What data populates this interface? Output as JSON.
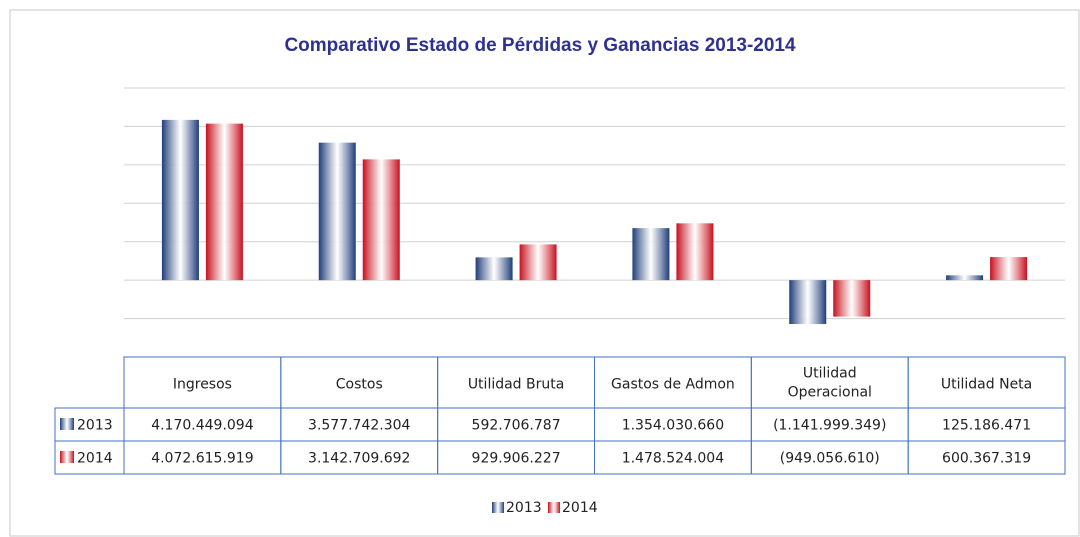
{
  "chart_data": {
    "type": "bar",
    "title": "Comparativo Estado de Pérdidas y Ganancias 2013-2014",
    "categories": [
      "Ingresos",
      "Costos",
      "Utilidad Bruta",
      "Gastos de Admon",
      "Utilidad Operacional",
      "Utilidad Neta"
    ],
    "series": [
      {
        "name": "2013",
        "color": "#1f3d7a",
        "values": [
          4170449094,
          3577742304,
          592706787,
          1354030660,
          -1141999349,
          125186471
        ],
        "value_labels": [
          "4.170.449.094",
          "3.577.742.304",
          "592.706.787",
          "1.354.030.660",
          "(1.141.999.349)",
          "125.186.471"
        ]
      },
      {
        "name": "2014",
        "color": "#c8101e",
        "values": [
          4072615919,
          3142709692,
          929906227,
          1478524004,
          -949056610,
          600367319
        ],
        "value_labels": [
          "4.072.615.919",
          "3.142.709.692",
          "929.906.227",
          "1.478.524.004",
          "(949.056.610)",
          "600.367.319"
        ]
      }
    ],
    "ylim": [
      -2000000000,
      5000000000
    ],
    "yticks": [
      -1000000000,
      0,
      1000000000,
      2000000000,
      3000000000,
      4000000000,
      5000000000
    ],
    "grid": true
  }
}
